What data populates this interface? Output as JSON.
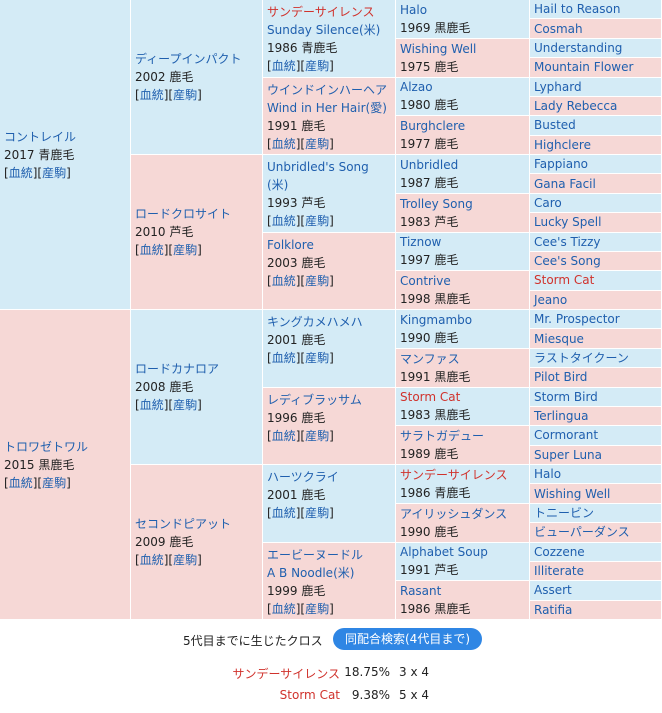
{
  "gen1": [
    {
      "name": "コントレイル",
      "year_color": "2017 青鹿毛",
      "links": [
        "血統",
        "産駒"
      ]
    },
    {
      "name": "トロワゼトワル",
      "year_color": "2015 黒鹿毛",
      "links": [
        "血統",
        "産駒"
      ]
    }
  ],
  "gen2": [
    {
      "name": "ディープインパクト",
      "year_color": "2002 鹿毛",
      "links": [
        "血統",
        "産駒"
      ]
    },
    {
      "name": "ロードクロサイト",
      "year_color": "2010 芦毛",
      "links": [
        "血統",
        "産駒"
      ]
    },
    {
      "name": "ロードカナロア",
      "year_color": "2008 鹿毛",
      "links": [
        "血統",
        "産駒"
      ]
    },
    {
      "name": "セコンドピアット",
      "year_color": "2009 鹿毛",
      "links": [
        "血統",
        "産駒"
      ]
    }
  ],
  "gen3": [
    {
      "name": "サンデーサイレンス",
      "sub": "Sunday Silence(米)",
      "year_color": "1986 青鹿毛",
      "links": [
        "血統",
        "産駒"
      ],
      "highlight": true
    },
    {
      "name": "ウインドインハーヘア",
      "sub": "Wind in Her Hair(愛)",
      "year_color": "1991 鹿毛",
      "links": [
        "血統",
        "産駒"
      ]
    },
    {
      "name": "Unbridled's Song",
      "sub": "(米)",
      "year_color": "1993 芦毛",
      "links": [
        "血統",
        "産駒"
      ]
    },
    {
      "name": "Folklore",
      "sub": "",
      "year_color": "2003 鹿毛",
      "links": [
        "血統",
        "産駒"
      ]
    },
    {
      "name": "キングカメハメハ",
      "sub": "",
      "year_color": "2001 鹿毛",
      "links": [
        "血統",
        "産駒"
      ]
    },
    {
      "name": "レディブラッサム",
      "sub": "",
      "year_color": "1996 鹿毛",
      "links": [
        "血統",
        "産駒"
      ]
    },
    {
      "name": "ハーツクライ",
      "sub": "",
      "year_color": "2001 鹿毛",
      "links": [
        "血統",
        "産駒"
      ]
    },
    {
      "name": "エービーヌードル",
      "sub": "A B Noodle(米)",
      "year_color": "1999 鹿毛",
      "links": [
        "血統",
        "産駒"
      ]
    }
  ],
  "gen4": [
    {
      "name": "Halo",
      "year_color": "1969 黒鹿毛"
    },
    {
      "name": "Wishing Well",
      "year_color": "1975 鹿毛"
    },
    {
      "name": "Alzao",
      "year_color": "1980 鹿毛"
    },
    {
      "name": "Burghclere",
      "year_color": "1977 鹿毛"
    },
    {
      "name": "Unbridled",
      "year_color": "1987 鹿毛"
    },
    {
      "name": "Trolley Song",
      "year_color": "1983 芦毛"
    },
    {
      "name": "Tiznow",
      "year_color": "1997 鹿毛"
    },
    {
      "name": "Contrive",
      "year_color": "1998 黒鹿毛"
    },
    {
      "name": "Kingmambo",
      "year_color": "1990 鹿毛"
    },
    {
      "name": "マンファス",
      "year_color": "1991 黒鹿毛"
    },
    {
      "name": "Storm Cat",
      "year_color": "1983 黒鹿毛",
      "highlight": true
    },
    {
      "name": "サラトガデュー",
      "year_color": "1989 鹿毛"
    },
    {
      "name": "サンデーサイレンス",
      "year_color": "1986 青鹿毛",
      "highlight": true
    },
    {
      "name": "アイリッシュダンス",
      "year_color": "1990 鹿毛"
    },
    {
      "name": "Alphabet Soup",
      "year_color": "1991 芦毛"
    },
    {
      "name": "Rasant",
      "year_color": "1986 黒鹿毛"
    }
  ],
  "gen5": [
    {
      "name": "Hail to Reason"
    },
    {
      "name": "Cosmah"
    },
    {
      "name": "Understanding"
    },
    {
      "name": "Mountain Flower"
    },
    {
      "name": "Lyphard"
    },
    {
      "name": "Lady Rebecca"
    },
    {
      "name": "Busted"
    },
    {
      "name": "Highclere"
    },
    {
      "name": "Fappiano"
    },
    {
      "name": "Gana Facil"
    },
    {
      "name": "Caro"
    },
    {
      "name": "Lucky Spell"
    },
    {
      "name": "Cee's Tizzy"
    },
    {
      "name": "Cee's Song"
    },
    {
      "name": "Storm Cat",
      "highlight": true
    },
    {
      "name": "Jeano"
    },
    {
      "name": "Mr. Prospector"
    },
    {
      "name": "Miesque"
    },
    {
      "name": "ラストタイクーン"
    },
    {
      "name": "Pilot Bird"
    },
    {
      "name": "Storm Bird"
    },
    {
      "name": "Terlingua"
    },
    {
      "name": "Cormorant"
    },
    {
      "name": "Super Luna"
    },
    {
      "name": "Halo"
    },
    {
      "name": "Wishing Well"
    },
    {
      "name": "トニービン"
    },
    {
      "name": "ビューパーダンス"
    },
    {
      "name": "Cozzene"
    },
    {
      "name": "Illiterate"
    },
    {
      "name": "Assert"
    },
    {
      "name": "Ratifia"
    }
  ],
  "cross": {
    "title": "5代目までに生じたクロス",
    "button": "同配合検索(4代目まで)",
    "rows": [
      {
        "name": "サンデーサイレンス",
        "pct": "18.75%",
        "gen": "3 x 4"
      },
      {
        "name": "Storm Cat",
        "pct": "9.38%",
        "gen": "5 x 4"
      }
    ]
  },
  "colors": {
    "male": "#d4ebf6",
    "female": "#f6d8d6",
    "link": "#1f5fae",
    "highlight": "#d0322c",
    "button": "#2f86e4"
  }
}
